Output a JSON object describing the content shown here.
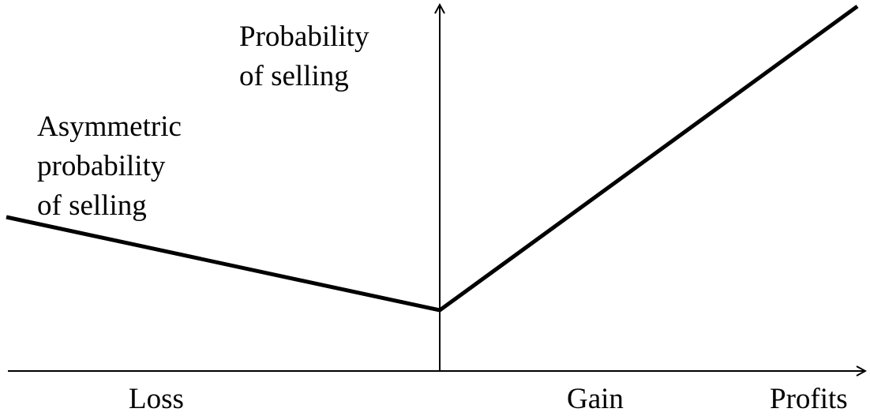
{
  "y_axis_label": [
    "Probability",
    "of selling"
  ],
  "curve_label": [
    "Asymmetric",
    "probability",
    "of selling"
  ],
  "x_labels": {
    "left": "Loss",
    "right": "Gain",
    "end": "Profits"
  }
}
